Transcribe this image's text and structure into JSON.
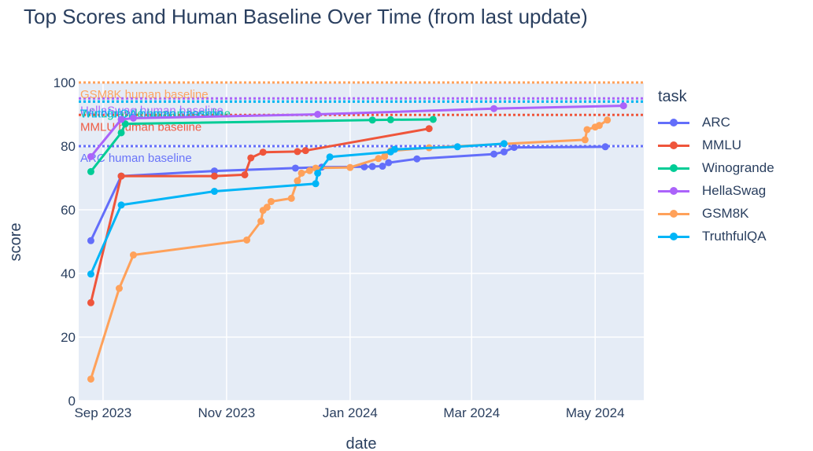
{
  "chart_data": {
    "type": "line",
    "title": "Top Scores and Human Baseline Over Time (from last update)",
    "xlabel": "date",
    "ylabel": "score",
    "x_range": [
      "2023-08-20",
      "2024-05-25"
    ],
    "ylim": [
      0,
      100
    ],
    "x_ticks": [
      {
        "date": "2023-09-01",
        "label": "Sep 2023"
      },
      {
        "date": "2023-11-01",
        "label": "Nov 2023"
      },
      {
        "date": "2024-01-01",
        "label": "Jan 2024"
      },
      {
        "date": "2024-03-01",
        "label": "Mar 2024"
      },
      {
        "date": "2024-05-01",
        "label": "May 2024"
      }
    ],
    "y_ticks": [
      0,
      20,
      40,
      60,
      80,
      100
    ],
    "grid": true,
    "legend_title": "task",
    "legend_position": "right",
    "series": [
      {
        "name": "ARC",
        "color": "#636efa",
        "points": [
          [
            "2023-08-26",
            50.3
          ],
          [
            "2023-09-10",
            70.6
          ],
          [
            "2023-10-26",
            72.2
          ],
          [
            "2023-12-05",
            73.1
          ],
          [
            "2023-12-18",
            73.4
          ],
          [
            "2024-01-08",
            73.5
          ],
          [
            "2024-01-12",
            73.6
          ],
          [
            "2024-01-17",
            73.7
          ],
          [
            "2024-01-20",
            74.8
          ],
          [
            "2024-02-03",
            76.0
          ],
          [
            "2024-03-12",
            77.5
          ],
          [
            "2024-03-17",
            78.2
          ],
          [
            "2024-03-22",
            79.6
          ],
          [
            "2024-05-06",
            79.8
          ]
        ]
      },
      {
        "name": "MMLU",
        "color": "#ef553b",
        "points": [
          [
            "2023-08-26",
            30.8
          ],
          [
            "2023-09-10",
            70.6
          ],
          [
            "2023-10-26",
            70.6
          ],
          [
            "2023-11-10",
            71.0
          ],
          [
            "2023-11-13",
            76.3
          ],
          [
            "2023-11-19",
            78.1
          ],
          [
            "2023-12-06",
            78.3
          ],
          [
            "2023-12-10",
            78.6
          ],
          [
            "2024-02-09",
            85.5
          ]
        ]
      },
      {
        "name": "Winogrande",
        "color": "#00cc96",
        "points": [
          [
            "2023-08-26",
            72.0
          ],
          [
            "2023-09-10",
            84.2
          ],
          [
            "2023-09-12",
            87.0
          ],
          [
            "2024-01-12",
            88.2
          ],
          [
            "2024-01-21",
            88.3
          ],
          [
            "2024-02-11",
            88.4
          ]
        ]
      },
      {
        "name": "HellaSwag",
        "color": "#ab63fa",
        "points": [
          [
            "2023-08-26",
            76.7
          ],
          [
            "2023-09-10",
            88.4
          ],
          [
            "2023-09-16",
            88.8
          ],
          [
            "2023-12-16",
            90.0
          ],
          [
            "2024-03-12",
            91.8
          ],
          [
            "2024-05-15",
            92.7
          ]
        ]
      },
      {
        "name": "GSM8K",
        "color": "#ffa15a",
        "points": [
          [
            "2023-08-26",
            6.8
          ],
          [
            "2023-09-09",
            35.3
          ],
          [
            "2023-09-16",
            45.8
          ],
          [
            "2023-11-11",
            50.5
          ],
          [
            "2023-11-18",
            56.4
          ],
          [
            "2023-11-19",
            59.8
          ],
          [
            "2023-11-21",
            60.8
          ],
          [
            "2023-11-23",
            62.6
          ],
          [
            "2023-12-03",
            63.6
          ],
          [
            "2023-12-06",
            69.1
          ],
          [
            "2023-12-08",
            71.5
          ],
          [
            "2023-12-12",
            72.3
          ],
          [
            "2023-12-15",
            73.1
          ],
          [
            "2024-01-01",
            73.3
          ],
          [
            "2024-01-15",
            76.1
          ],
          [
            "2024-01-18",
            76.7
          ],
          [
            "2024-01-21",
            78.5
          ],
          [
            "2024-02-09",
            79.5
          ],
          [
            "2024-04-26",
            82.0
          ],
          [
            "2024-04-27",
            85.2
          ],
          [
            "2024-05-01",
            86.0
          ],
          [
            "2024-05-03",
            86.5
          ],
          [
            "2024-05-07",
            88.2
          ]
        ]
      },
      {
        "name": "TruthfulQA",
        "color": "#00b5f7",
        "points": [
          [
            "2023-08-26",
            39.8
          ],
          [
            "2023-09-10",
            61.5
          ],
          [
            "2023-10-26",
            65.8
          ],
          [
            "2023-12-15",
            68.2
          ],
          [
            "2023-12-16",
            71.5
          ],
          [
            "2023-12-22",
            76.6
          ],
          [
            "2024-01-21",
            78.2
          ],
          [
            "2024-01-23",
            79.0
          ],
          [
            "2024-02-23",
            79.8
          ],
          [
            "2024-03-17",
            80.8
          ]
        ]
      }
    ],
    "baselines": [
      {
        "name": "ARC",
        "label": "ARC human baseline",
        "value": 80.0,
        "color": "#636efa"
      },
      {
        "name": "MMLU",
        "label": "MMLU human baseline",
        "value": 89.8,
        "color": "#ef553b"
      },
      {
        "name": "Winogrande",
        "label": "Winogrande human baseline",
        "value": 94.0,
        "color": "#00cc96"
      },
      {
        "name": "HellaSwag",
        "label": "HellaSwag human baseline",
        "value": 95.0,
        "color": "#ab63fa"
      },
      {
        "name": "GSM8K",
        "label": "GSM8K human baseline",
        "value": 100.0,
        "color": "#ffa15a"
      },
      {
        "name": "TruthfulQA",
        "label": "TruthfulQA human baseline",
        "value": 94.0,
        "color": "#00b5f7"
      }
    ]
  }
}
